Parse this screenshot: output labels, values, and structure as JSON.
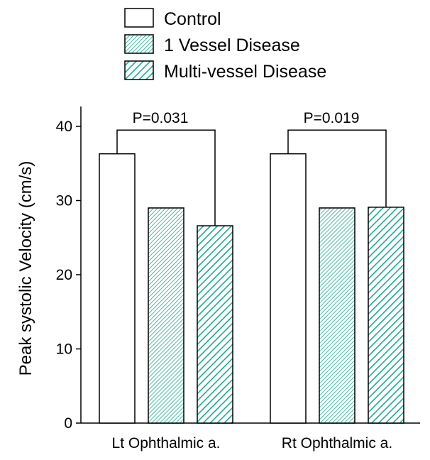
{
  "chart_data": {
    "type": "bar",
    "title": "",
    "xlabel": "",
    "ylabel": "Peak systolic Velocity (cm/s)",
    "ylim": [
      0,
      42
    ],
    "yticks": [
      0,
      10,
      20,
      30,
      40
    ],
    "categories": [
      "Lt Ophthalmic a.",
      "Rt Ophthalmic a."
    ],
    "series": [
      {
        "name": "Control",
        "values": [
          36.3,
          36.3
        ],
        "color": "#ffffff",
        "pattern": "none"
      },
      {
        "name": "1 Vessel Disease",
        "values": [
          29.0,
          29.0
        ],
        "color": "#20a890",
        "pattern": "fine-hatch"
      },
      {
        "name": "Multi-vessel Disease",
        "values": [
          26.6,
          29.1
        ],
        "color": "#20a890",
        "pattern": "coarse-hatch"
      }
    ],
    "legend_position": "top",
    "grid": false,
    "annotations": [
      {
        "text": "P=0.031",
        "category": 0,
        "from_series": 0,
        "to_series": 2,
        "bracket_value": 39.5
      },
      {
        "text": "P=0.019",
        "category": 1,
        "from_series": 0,
        "to_series": 2,
        "bracket_value": 39.5
      }
    ]
  }
}
